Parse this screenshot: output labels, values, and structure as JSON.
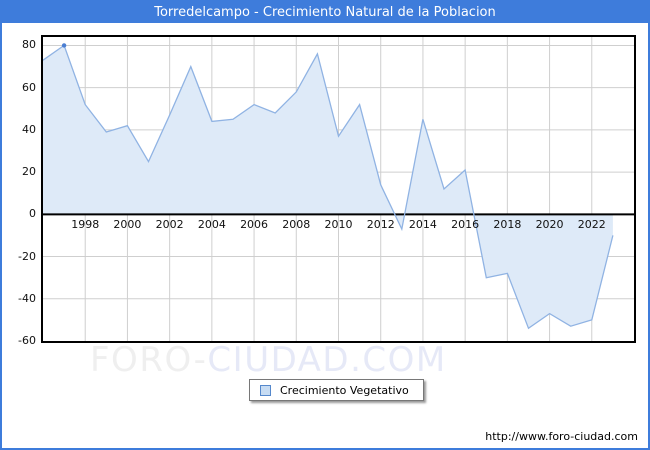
{
  "window": {
    "title": "Torredelcampo - Crecimiento Natural de la Poblacion"
  },
  "legend": {
    "label": "Crecimiento Vegetativo"
  },
  "watermark": {
    "part1": "FORO-",
    "part2": "CIUDAD.COM"
  },
  "footer": {
    "url": "http://www.foro-ciudad.com"
  },
  "colors": {
    "accent_blue": "#3e7cdb",
    "line": "#90b3e3",
    "area_fill": "#deeaf8",
    "marker": "#4a7ed2",
    "grid": "#cfcfcf",
    "zero_line": "#000000",
    "tick_text": "#111111",
    "watermark_gray": "#efefef",
    "watermark_blue": "#e6e9f7"
  },
  "chart_data": {
    "type": "area",
    "title": "Torredelcampo - Crecimiento Natural de la Poblacion",
    "x": [
      1996,
      1997,
      1998,
      1999,
      2000,
      2001,
      2002,
      2003,
      2004,
      2005,
      2006,
      2007,
      2008,
      2009,
      2010,
      2011,
      2012,
      2013,
      2014,
      2015,
      2016,
      2017,
      2018,
      2019,
      2020,
      2021,
      2022,
      2023
    ],
    "series": [
      {
        "name": "Crecimiento Vegetativo",
        "values": [
          73,
          80,
          52,
          39,
          42,
          25,
          47,
          70,
          44,
          45,
          52,
          48,
          58,
          76,
          37,
          52,
          14,
          -7,
          45,
          12,
          21,
          -30,
          -28,
          -54,
          -47,
          -53,
          -50,
          -10
        ]
      }
    ],
    "xlabel": "",
    "ylabel": "",
    "xlim": [
      1996,
      2024
    ],
    "ylim": [
      -60,
      84
    ],
    "x_ticks": [
      1998,
      2000,
      2002,
      2004,
      2006,
      2008,
      2010,
      2012,
      2014,
      2016,
      2018,
      2020,
      2022
    ],
    "y_ticks": [
      80,
      60,
      40,
      20,
      0,
      -20,
      -40,
      -60
    ],
    "grid": true,
    "baseline": 0,
    "marker_point": {
      "x": 1997,
      "y": 80
    },
    "legend_position": "bottom-center"
  }
}
